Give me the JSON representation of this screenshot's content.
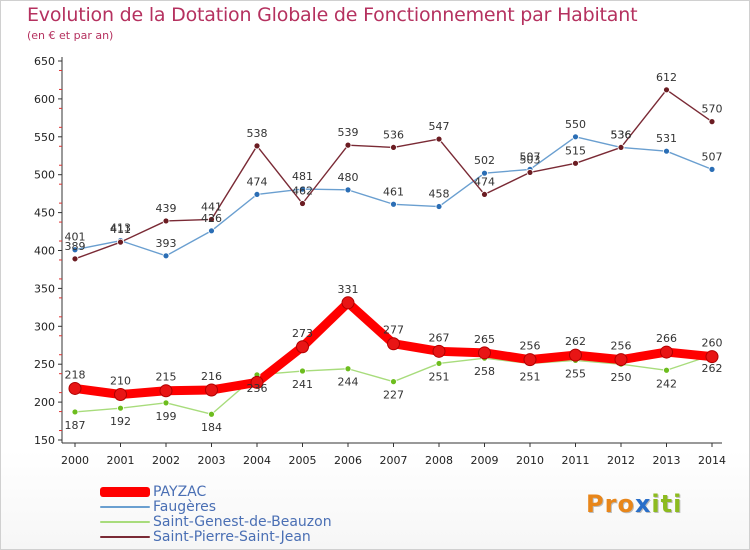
{
  "header": {
    "title": "Evolution de la Dotation Globale de Fonctionnement par Habitant",
    "subtitle": "(en € et par an)"
  },
  "logo": {
    "letters": [
      "P",
      "r",
      "o",
      "x",
      "i",
      "t",
      "i"
    ],
    "colors": [
      "#e8861a",
      "#e8861a",
      "#e8861a",
      "#2a6fc9",
      "#8dbb1f",
      "#8dbb1f",
      "#8dbb1f"
    ]
  },
  "chart_data": {
    "type": "line",
    "title": "Evolution de la Dotation Globale de Fonctionnement par Habitant",
    "subtitle": "(en € et par an)",
    "xlabel": "",
    "ylabel": "",
    "ylim": [
      150,
      650
    ],
    "yticks": [
      150,
      200,
      250,
      300,
      350,
      400,
      450,
      500,
      550,
      600,
      650
    ],
    "grid": false,
    "legend_position": "bottom-left",
    "categories": [
      "2000",
      "2001",
      "2002",
      "2003",
      "2004",
      "2005",
      "2006",
      "2007",
      "2008",
      "2009",
      "2010",
      "2011",
      "2012",
      "2013",
      "2014"
    ],
    "series": [
      {
        "name": "PAYZAC",
        "color": "#ff0000",
        "marker": "#e81515",
        "values": [
          218,
          210,
          215,
          216,
          226,
          273,
          331,
          277,
          267,
          265,
          256,
          262,
          256,
          266,
          260
        ],
        "labels": [
          "218",
          "210",
          "215",
          "216",
          "",
          "273",
          "331",
          "277",
          "267",
          "265",
          "256",
          "262",
          "256",
          "266",
          "260"
        ]
      },
      {
        "name": "Faugères",
        "color": "#6a9fd0",
        "marker": "#2b6eb5",
        "values": [
          401,
          413,
          393,
          426,
          474,
          481,
          480,
          461,
          458,
          502,
          507,
          550,
          536,
          531,
          507
        ],
        "labels": [
          "401",
          "413",
          "393",
          "426",
          "474",
          "481",
          "480",
          "461",
          "458",
          "502",
          "507",
          "550",
          "536",
          "531",
          "507"
        ]
      },
      {
        "name": "Saint-Genest-de-Beauzon",
        "color": "#a8dc7c",
        "marker": "#6dbd1e",
        "values": [
          187,
          192,
          199,
          184,
          236,
          241,
          244,
          227,
          251,
          258,
          251,
          255,
          250,
          242,
          262
        ],
        "labels": [
          "187",
          "192",
          "199",
          "184",
          "236",
          "241",
          "244",
          "227",
          "251",
          "258",
          "251",
          "255",
          "250",
          "242",
          "262"
        ]
      },
      {
        "name": "Saint-Pierre-Saint-Jean",
        "color": "#7a2a35",
        "marker": "#6b1c22",
        "values": [
          389,
          411,
          439,
          441,
          538,
          462,
          539,
          536,
          547,
          474,
          503,
          515,
          536,
          612,
          570
        ],
        "labels": [
          "389",
          "411",
          "439",
          "441",
          "538",
          "462",
          "539",
          "536",
          "547",
          "474",
          "503",
          "515",
          "536",
          "612",
          "570"
        ]
      }
    ]
  }
}
